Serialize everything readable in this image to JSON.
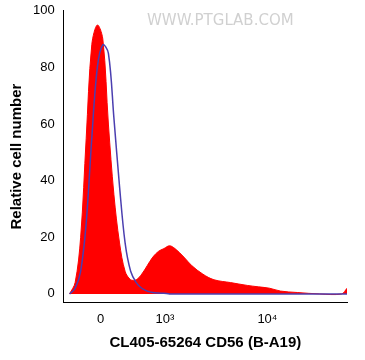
{
  "chart_data": {
    "type": "line",
    "x_label": "CL405-65264 CD56 (B-A19)",
    "y_label": "Relative cell number",
    "annotations": [
      "WWW.PTGLAB.COM"
    ],
    "log": "x",
    "x": [
      -383,
      -307,
      -236,
      -168,
      -102,
      -38,
      25,
      89,
      154,
      222,
      293,
      368,
      449,
      536,
      630,
      734,
      849,
      976,
      1120,
      1276,
      1570,
      1880,
      2410,
      3090,
      4460,
      6430,
      8220,
      10500,
      13300,
      19200,
      31200,
      50700,
      57000
    ],
    "series": [
      {
        "color": "#ff0000",
        "type": "area",
        "values": [
          0,
          4,
          20,
          55,
          88,
          95,
          90,
          60,
          35,
          18,
          8,
          5,
          5,
          7,
          10,
          13,
          15,
          16,
          17,
          16,
          13,
          10,
          7,
          5,
          4,
          3,
          2.5,
          2,
          1,
          0.5,
          0,
          0,
          2
        ]
      },
      {
        "color": "#4b3fb0",
        "type": "line",
        "values": [
          0,
          2,
          8,
          25,
          55,
          80,
          88,
          85,
          62,
          38,
          18,
          8,
          4,
          2,
          1,
          0.5,
          0.3,
          0.2,
          0,
          0,
          0,
          0,
          0,
          0,
          0,
          0,
          0,
          0,
          0,
          0,
          0,
          0,
          0
        ]
      }
    ],
    "xlim": [
      -470,
      57000
    ],
    "xticks": [
      0,
      {
        "value": 1000,
        "label": "10³"
      },
      {
        "value": 10000,
        "label": "10⁴"
      }
    ],
    "ylim": [
      -3,
      100
    ],
    "yticks": [
      0,
      20,
      40,
      60,
      80,
      100
    ],
    "grid": false
  }
}
